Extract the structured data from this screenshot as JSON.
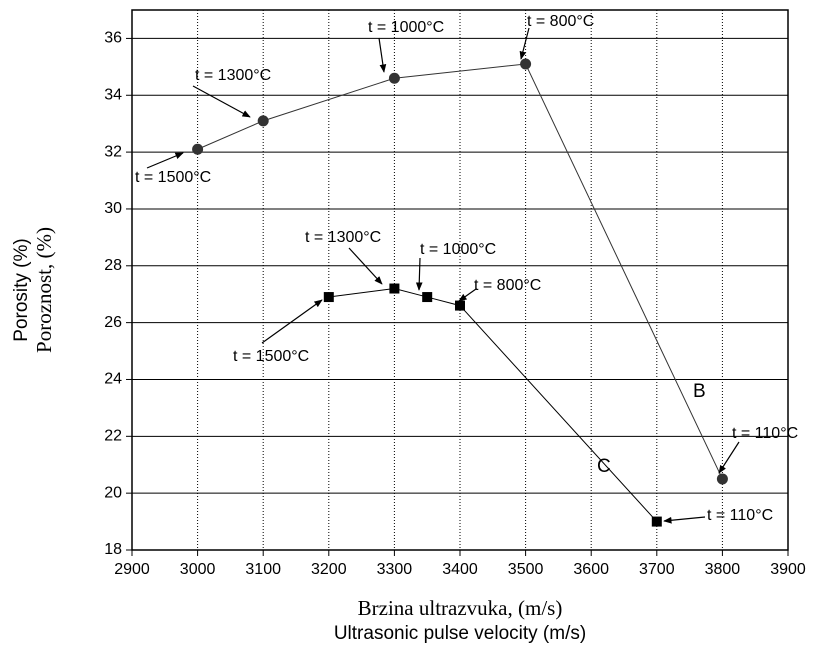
{
  "chart_data": {
    "type": "line",
    "x_label": [
      "Brzina ultrazvuka, (m/s)",
      "Ultrasonic pulse velocity (m/s)"
    ],
    "y_label": [
      "Porosity (%)",
      "Poroznost, (%)"
    ],
    "xlim": [
      2900,
      3900
    ],
    "ylim": [
      18,
      37
    ],
    "xticks": [
      2900,
      3000,
      3100,
      3200,
      3300,
      3400,
      3500,
      3600,
      3700,
      3800,
      3900
    ],
    "yticks": [
      18,
      20,
      22,
      24,
      26,
      28,
      30,
      32,
      34,
      36
    ],
    "grid": true,
    "series": [
      {
        "name": "B",
        "color": "#333333",
        "marker": "circle",
        "x": [
          3000,
          3100,
          3300,
          3500,
          3800
        ],
        "values": [
          32.1,
          33.1,
          34.6,
          35.1,
          20.5
        ],
        "annotations": [
          "t = 1500°C",
          "t = 1300°C",
          "t = 1000°C",
          "t = 800°C",
          "t = 110°C"
        ]
      },
      {
        "name": "C",
        "color": "#000000",
        "marker": "square",
        "x": [
          3200,
          3300,
          3350,
          3400,
          3700
        ],
        "values": [
          26.9,
          27.2,
          26.9,
          26.6,
          19.0
        ],
        "annotations": [
          "t = 1500°C",
          "t = 1300°C",
          "t = 1000°C",
          "t = 800°C",
          "t = 110°C"
        ]
      }
    ]
  }
}
